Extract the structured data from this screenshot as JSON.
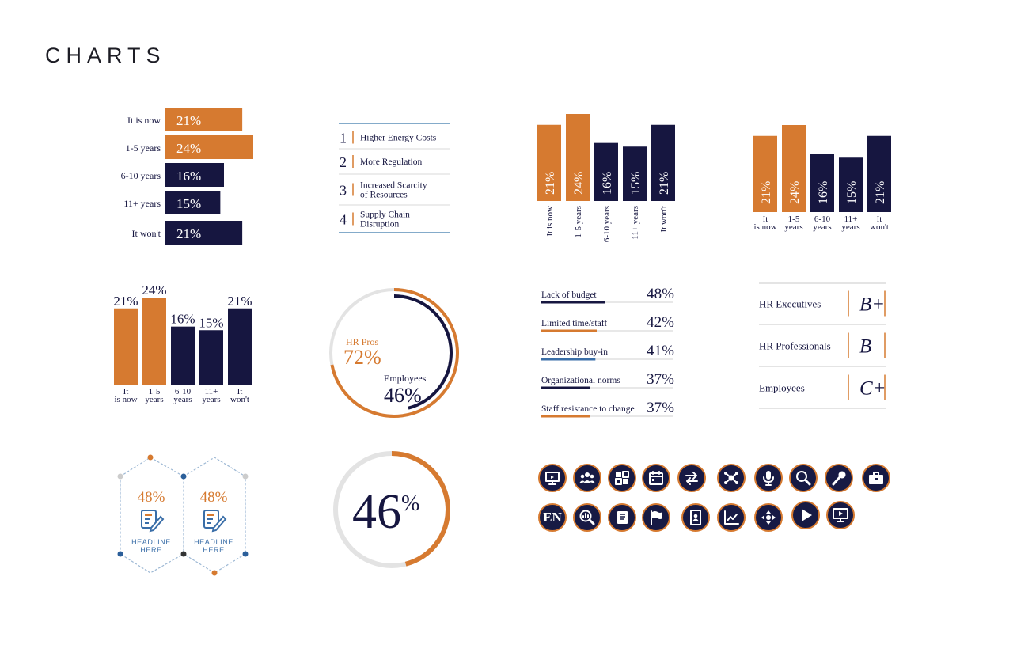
{
  "page": {
    "title": "CHARTS"
  },
  "colors": {
    "orange": "#d67a30",
    "navy": "#161640",
    "gray": "#e3e3e3",
    "blue": "#3a6ea8"
  },
  "chart_data": [
    {
      "type": "bar",
      "orientation": "horizontal",
      "categories": [
        "It is now",
        "1-5 years",
        "6-10 years",
        "11+ years",
        "It won't"
      ],
      "values": [
        21,
        24,
        16,
        15,
        21
      ],
      "value_labels": [
        "21%",
        "24%",
        "16%",
        "15%",
        "21%"
      ],
      "highlight_colors": [
        "#d67a30",
        "#d67a30",
        "#161640",
        "#161640",
        "#161640"
      ]
    },
    {
      "type": "table",
      "rows": [
        {
          "rank": "1",
          "label": "Higher Energy Costs"
        },
        {
          "rank": "2",
          "label": "More Regulation"
        },
        {
          "rank": "3",
          "label": "Increased Scarcity of Resources"
        },
        {
          "rank": "4",
          "label": "Supply Chain Disruption"
        }
      ]
    },
    {
      "type": "bar",
      "orientation": "vertical",
      "categories": [
        "It is now",
        "1-5 years",
        "6-10 years",
        "11+ years",
        "It won't"
      ],
      "values": [
        21,
        24,
        16,
        15,
        21
      ],
      "value_labels": [
        "21%",
        "24%",
        "16%",
        "15%",
        "21%"
      ],
      "label_orientation": "rotated"
    },
    {
      "type": "bar",
      "orientation": "vertical",
      "categories": [
        "It is now",
        "1-5 years",
        "6-10 years",
        "11+ years",
        "It won't"
      ],
      "values": [
        21,
        24,
        16,
        15,
        21
      ],
      "value_labels": [
        "21%",
        "24%",
        "16%",
        "15%",
        "21%"
      ],
      "label_orientation": "stacked"
    },
    {
      "type": "bar",
      "orientation": "vertical",
      "categories": [
        "It is now",
        "1-5 years",
        "6-10 years",
        "11+ years",
        "It won't"
      ],
      "values": [
        21,
        24,
        16,
        15,
        21
      ],
      "value_labels": [
        "21%",
        "24%",
        "16%",
        "15%",
        "21%"
      ],
      "label_position": "above"
    },
    {
      "type": "pie",
      "style": "concentric-rings",
      "series": [
        {
          "name": "HR Pros",
          "value": 72,
          "label": "72%"
        },
        {
          "name": "Employees",
          "value": 46,
          "label": "46%"
        }
      ]
    },
    {
      "type": "bar",
      "orientation": "horizontal",
      "style": "underline",
      "categories": [
        "Lack of budget",
        "Limited time/staff",
        "Leadership buy-in",
        "Organizational norms",
        "Staff resistance to change"
      ],
      "values": [
        48,
        42,
        41,
        37,
        37
      ],
      "value_labels": [
        "48%",
        "42%",
        "41%",
        "37%",
        "37%"
      ],
      "bar_colors": [
        "#161640",
        "#d67a30",
        "#3a6ea8",
        "#161640",
        "#d67a30"
      ]
    },
    {
      "type": "table",
      "rows": [
        {
          "label": "HR Executives",
          "grade": "B+"
        },
        {
          "label": "HR Professionals",
          "grade": "B"
        },
        {
          "label": "Employees",
          "grade": "C+"
        }
      ]
    },
    {
      "type": "table",
      "style": "hexagon-callouts",
      "items": [
        {
          "value": "48%",
          "label_line1": "HEADLINE",
          "label_line2": "HERE",
          "icon": "document-edit-icon"
        },
        {
          "value": "48%",
          "label_line1": "HEADLINE",
          "label_line2": "HERE",
          "icon": "document-edit-icon"
        }
      ]
    },
    {
      "type": "pie",
      "style": "donut",
      "value": 46,
      "value_number": "46",
      "value_unit": "%"
    }
  ],
  "icons": [
    "presentation-icon",
    "group-icon",
    "puzzle-icon",
    "calendar-icon",
    "exchange-icon",
    "network-icon",
    "microphone-icon",
    "search-icon",
    "handheld-mic-icon",
    "toolbox-icon",
    "language-icon",
    "magnify-chart-icon",
    "book-icon",
    "flag-icon",
    "id-card-icon",
    "line-chart-icon",
    "move-arrows-icon",
    "play-icon",
    "monitor-play-icon"
  ],
  "icon_text": {
    "language-icon": "EN"
  }
}
